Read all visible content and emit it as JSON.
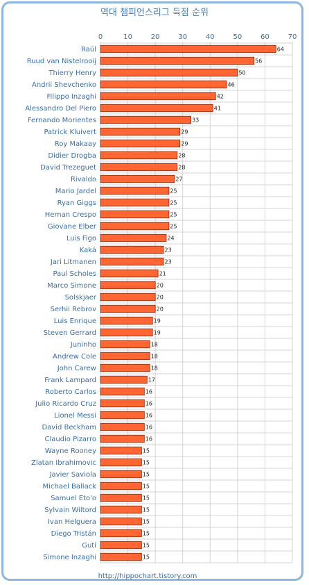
{
  "chart_data": {
    "type": "bar",
    "orientation": "horizontal",
    "title": "역대 챔피언스리그 득점 순위",
    "xlim": [
      0,
      70
    ],
    "xticks": [
      0,
      10,
      20,
      30,
      40,
      50,
      60,
      70
    ],
    "grid": true,
    "bar_color": "#ff6633",
    "categories": [
      "Raúl",
      "Ruud van Nistelrooij",
      "Thierry Henry",
      "Andrii Shevchenko",
      "Filippo Inzaghi",
      "Alessandro Del Piero",
      "Fernando Morientes",
      "Patrick Kluivert",
      "Roy Makaay",
      "Didier Drogba",
      "David Trezeguet",
      "Rivaldo",
      "Mario Jardel",
      "Ryan Giggs",
      "Hernan Crespo",
      "Giovane Elber",
      "Luis Figo",
      "Kaká",
      "Jari Litmanen",
      "Paul Scholes",
      "Marco Simone",
      "Solskjaer",
      "Serhii Rebrov",
      "Luis Enrique",
      "Steven Gerrard",
      "Juninho",
      "Andrew Cole",
      "John Carew",
      "Frank Lampard",
      "Roberto Carlos",
      "Julio Ricardo Cruz",
      "Lionel Messi",
      "David Beckham",
      "Claudio Pizarro",
      "Wayne Rooney",
      "Zlatan Ibrahimovic",
      "Javier Saviola",
      "Michael Ballack",
      "Samuel Eto'o",
      "Sylvain Wiltord",
      "Ivan Helguera",
      "Diego Tristán",
      "Gutí",
      "Simone Inzaghi"
    ],
    "values": [
      64,
      56,
      50,
      46,
      42,
      41,
      33,
      29,
      29,
      28,
      28,
      27,
      25,
      25,
      25,
      25,
      24,
      23,
      23,
      21,
      20,
      20,
      20,
      19,
      19,
      18,
      18,
      18,
      17,
      16,
      16,
      16,
      16,
      16,
      15,
      15,
      15,
      15,
      15,
      15,
      15,
      15,
      15,
      15
    ]
  },
  "footer": "http://hippochart.tistory.com"
}
